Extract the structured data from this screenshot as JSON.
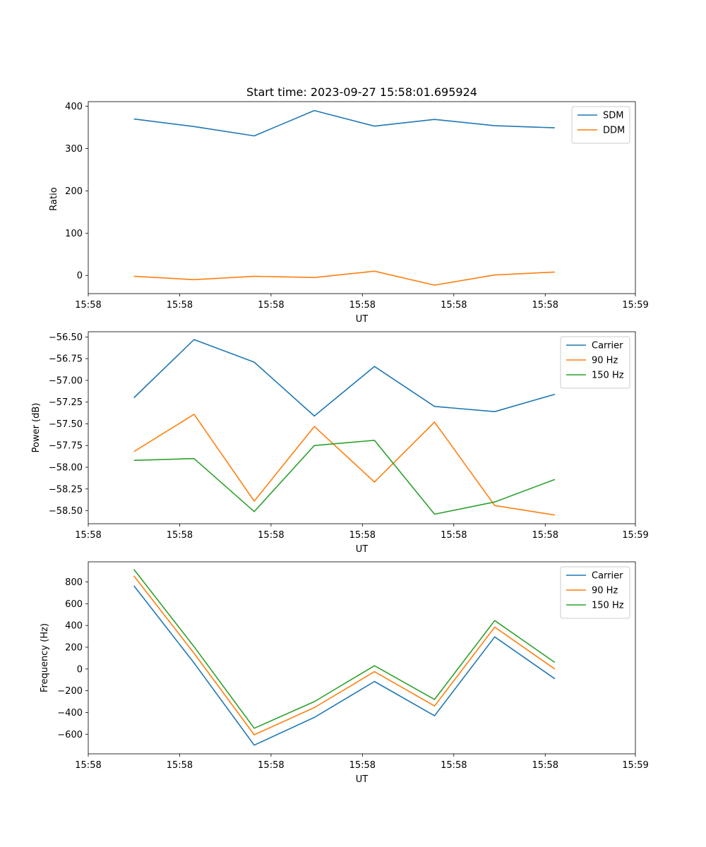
{
  "chart_data": [
    {
      "type": "line",
      "title": "Start time: 2023-09-27 15:58:01.695924",
      "xlabel": "UT",
      "ylabel": "Ratio",
      "x": [
        0,
        1,
        2,
        3,
        4,
        5,
        6,
        7
      ],
      "xlim": [
        -0.76,
        8.34
      ],
      "ylim": [
        -43,
        411
      ],
      "xticks": [
        -0.76,
        0.76,
        2.28,
        3.8,
        5.32,
        6.84,
        8.34
      ],
      "xtick_labels": [
        "15:58",
        "15:58",
        "15:58",
        "15:58",
        "15:58",
        "15:58",
        "15:59"
      ],
      "yticks": [
        0,
        100,
        200,
        300,
        400
      ],
      "ytick_labels": [
        "0",
        "100",
        "200",
        "300",
        "400"
      ],
      "legend_position": "top-right",
      "series": [
        {
          "name": "SDM",
          "color": "#1f77b4",
          "values": [
            370,
            352,
            330,
            390,
            353,
            369,
            354,
            349
          ]
        },
        {
          "name": "DDM",
          "color": "#ff7f0e",
          "values": [
            -2,
            -10,
            -2,
            -5,
            10,
            -23,
            1,
            8
          ]
        }
      ]
    },
    {
      "type": "line",
      "title": "",
      "xlabel": "UT",
      "ylabel": "Power (dB)",
      "x": [
        0,
        1,
        2,
        3,
        4,
        5,
        6,
        7
      ],
      "xlim": [
        -0.76,
        8.34
      ],
      "ylim": [
        -58.65,
        -56.44
      ],
      "xticks": [
        -0.76,
        0.76,
        2.28,
        3.8,
        5.32,
        6.84,
        8.34
      ],
      "xtick_labels": [
        "15:58",
        "15:58",
        "15:58",
        "15:58",
        "15:58",
        "15:58",
        "15:59"
      ],
      "yticks": [
        -56.5,
        -56.75,
        -57.0,
        -57.25,
        -57.5,
        -57.75,
        -58.0,
        -58.25,
        -58.5
      ],
      "ytick_labels": [
        "−56.50",
        "−56.75",
        "−57.00",
        "−57.25",
        "−57.50",
        "−57.75",
        "−58.00",
        "−58.25",
        "−58.50"
      ],
      "legend_position": "top-right",
      "series": [
        {
          "name": "Carrier",
          "color": "#1f77b4",
          "values": [
            -57.2,
            -56.53,
            -56.79,
            -57.41,
            -56.84,
            -57.3,
            -57.36,
            -57.16
          ]
        },
        {
          "name": "90 Hz",
          "color": "#ff7f0e",
          "values": [
            -57.82,
            -57.39,
            -58.39,
            -57.53,
            -58.17,
            -57.48,
            -58.44,
            -58.55
          ]
        },
        {
          "name": "150 Hz",
          "color": "#2ca02c",
          "values": [
            -57.92,
            -57.9,
            -58.51,
            -57.75,
            -57.69,
            -58.54,
            -58.4,
            -58.14
          ]
        }
      ]
    },
    {
      "type": "line",
      "title": "",
      "xlabel": "UT",
      "ylabel": "Frequency (Hz)",
      "x": [
        0,
        1,
        2,
        3,
        4,
        5,
        6,
        7
      ],
      "xlim": [
        -0.76,
        8.34
      ],
      "ylim": [
        -780,
        985
      ],
      "xticks": [
        -0.76,
        0.76,
        2.28,
        3.8,
        5.32,
        6.84,
        8.34
      ],
      "xtick_labels": [
        "15:58",
        "15:58",
        "15:58",
        "15:58",
        "15:58",
        "15:58",
        "15:59"
      ],
      "yticks": [
        -600,
        -400,
        -200,
        0,
        200,
        400,
        600,
        800
      ],
      "ytick_labels": [
        "−600",
        "−400",
        "−200",
        "0",
        "200",
        "400",
        "600",
        "800"
      ],
      "legend_position": "top-right",
      "series": [
        {
          "name": "Carrier",
          "color": "#1f77b4",
          "values": [
            765,
            55,
            -700,
            -445,
            -115,
            -430,
            295,
            -90
          ]
        },
        {
          "name": "90 Hz",
          "color": "#ff7f0e",
          "values": [
            855,
            145,
            -605,
            -355,
            -25,
            -340,
            385,
            0
          ]
        },
        {
          "name": "150 Hz",
          "color": "#2ca02c",
          "values": [
            915,
            205,
            -545,
            -300,
            30,
            -280,
            445,
            60
          ]
        }
      ]
    }
  ]
}
